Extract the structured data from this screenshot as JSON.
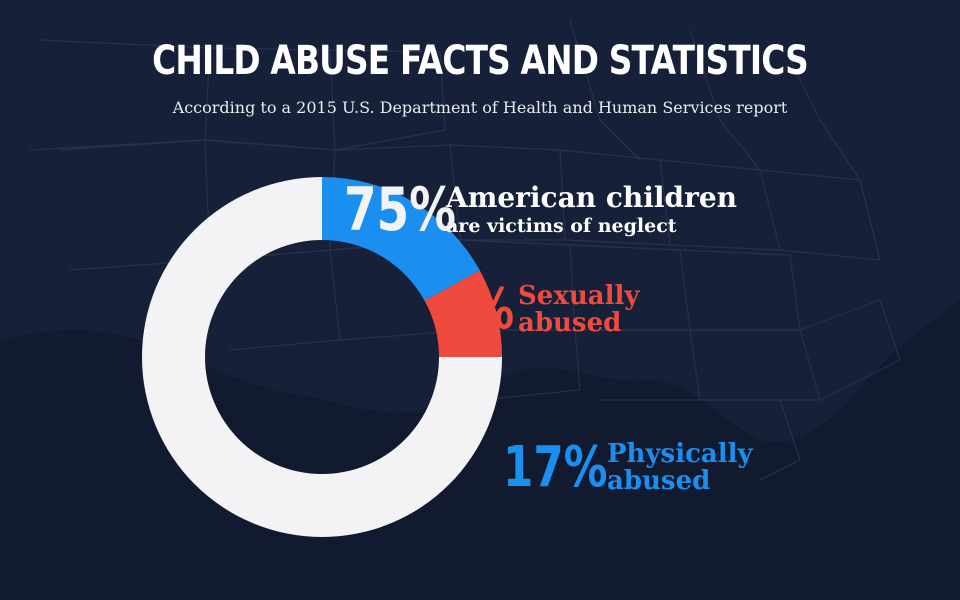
{
  "title": "CHILD ABUSE FACTS AND STATISTICS",
  "subtitle": "According to a 2015 U.S. Department of Health and Human Services report",
  "stats": {
    "neglect": {
      "pct": "75%",
      "label_main": "American children",
      "label_sub": "are victims of neglect"
    },
    "sexual": {
      "pct": "8%",
      "label_line1": "Sexually",
      "label_line2": "abused"
    },
    "physical": {
      "pct": "17%",
      "label_line1": "Physically",
      "label_line2": "abused"
    }
  },
  "colors": {
    "background": "#0f1628",
    "neglect": "#f3f3f5",
    "sexual": "#f04a3e",
    "physical": "#1a8ff0"
  },
  "chart_data": {
    "type": "pie",
    "labels": [
      "Neglect",
      "Sexually abused",
      "Physically abused"
    ],
    "values": [
      75,
      8,
      17
    ],
    "title": "CHILD ABUSE FACTS AND STATISTICS"
  }
}
